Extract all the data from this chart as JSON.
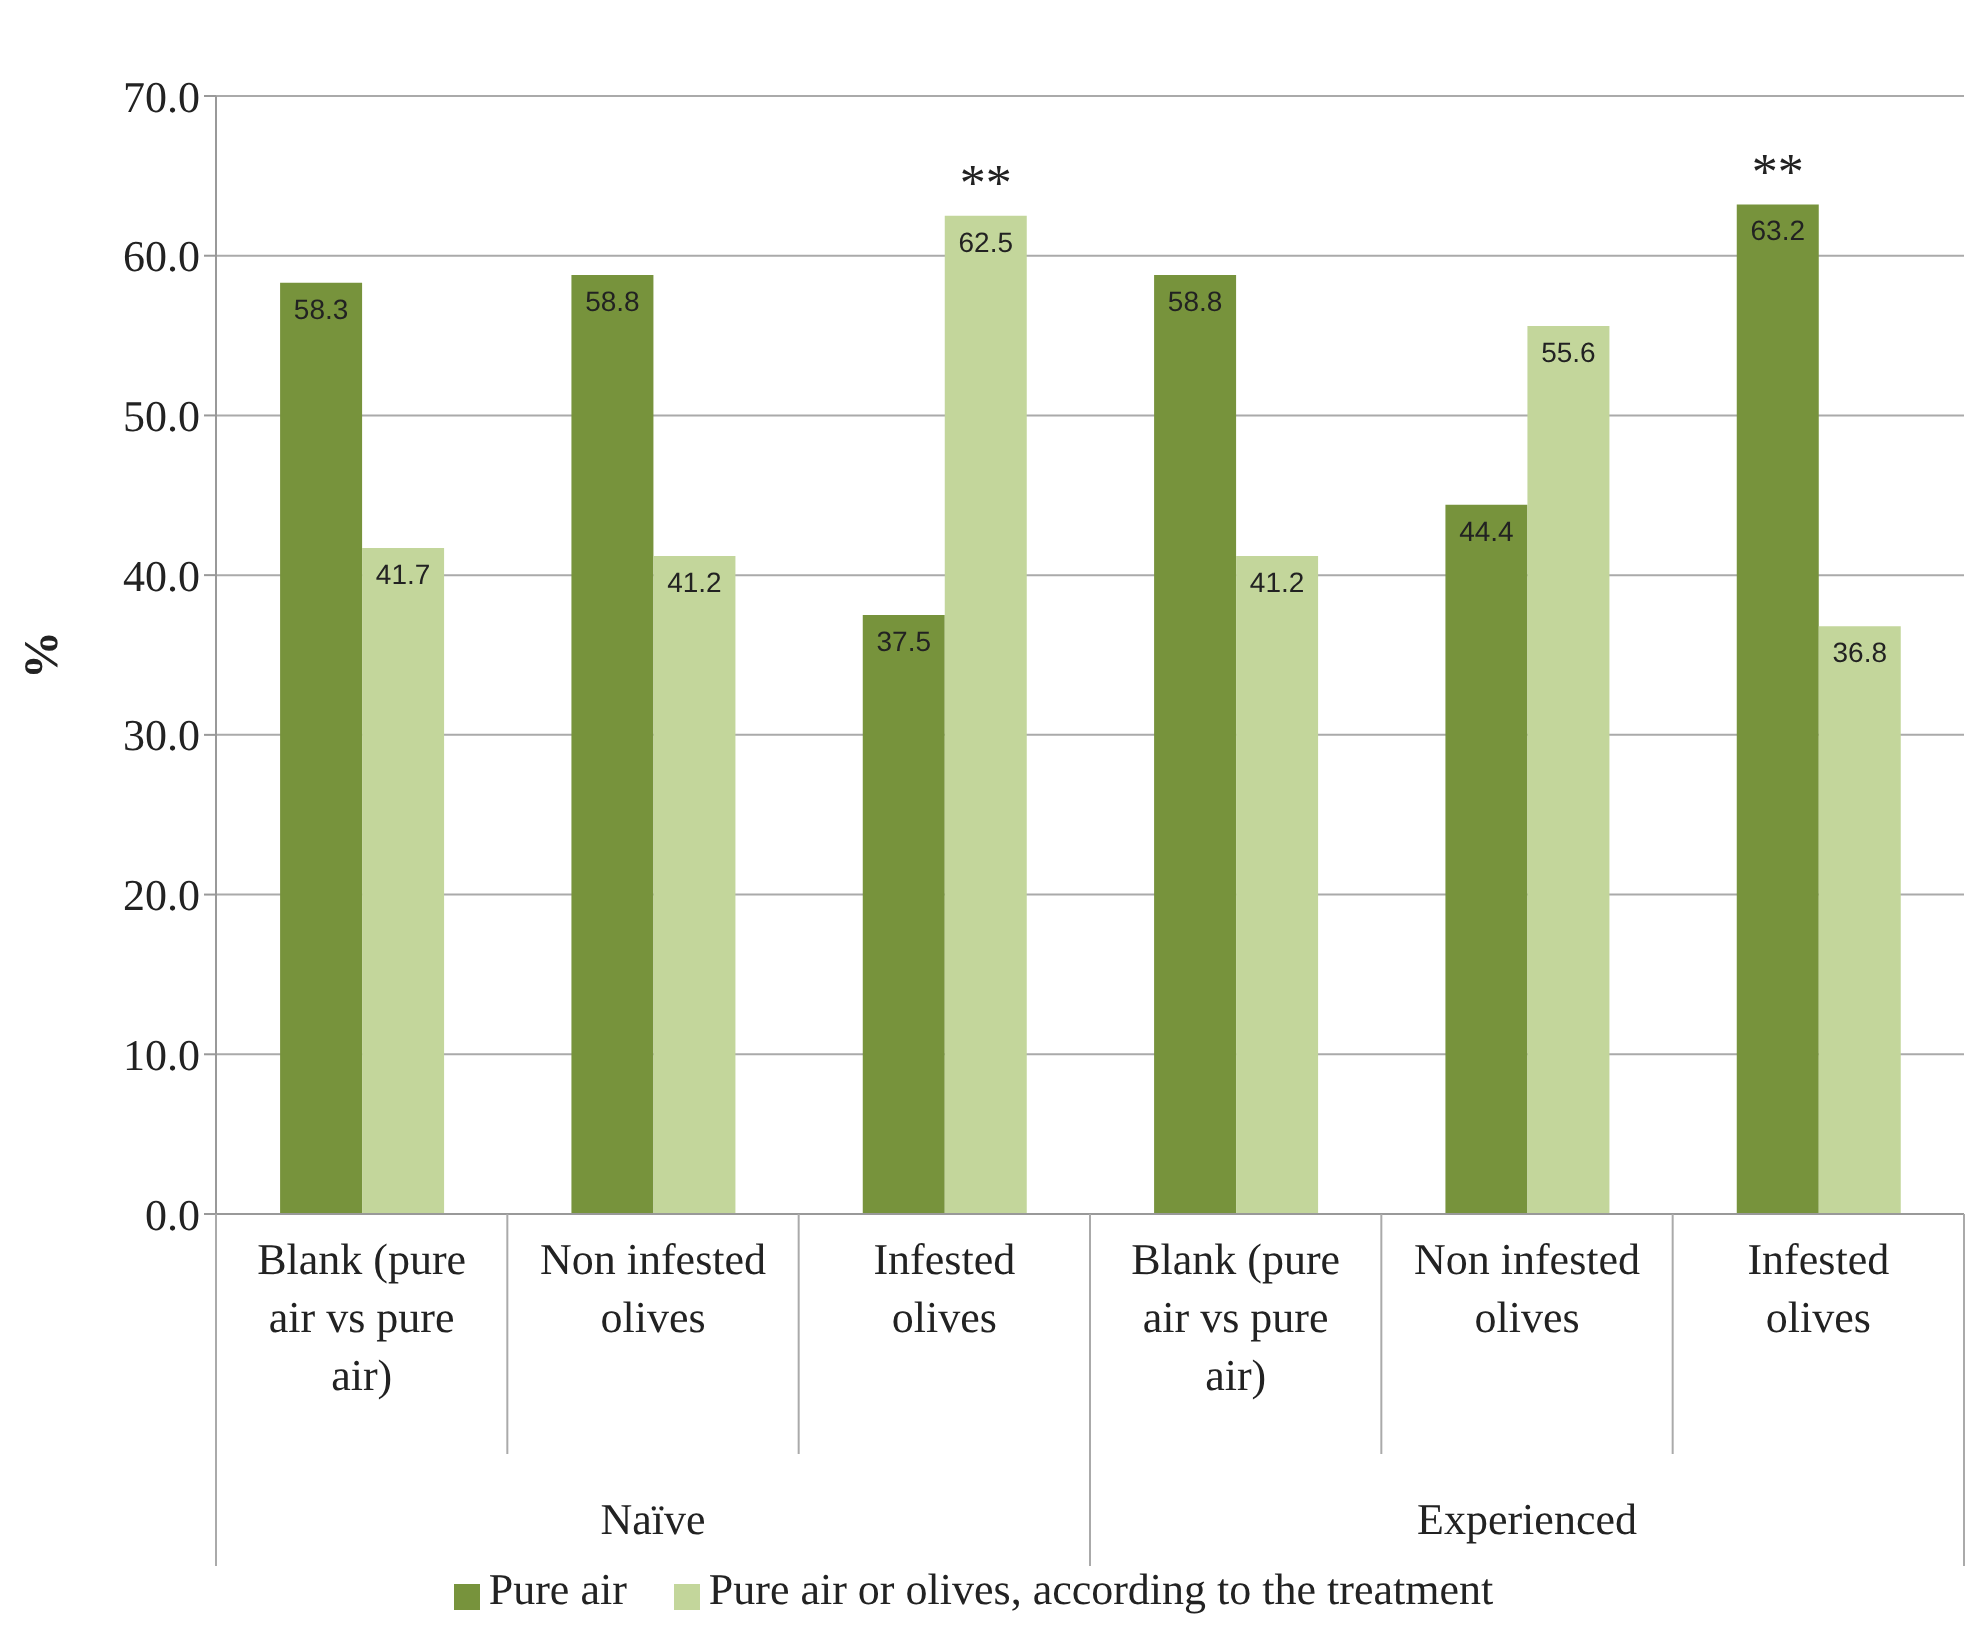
{
  "chart_data": {
    "type": "bar",
    "ylabel": "%",
    "categories": [
      "Blank (pure air vs pure air)",
      "Non infested olives",
      "Infested olives",
      "Blank (pure air vs pure air)",
      "Non infested olives",
      "Infested olives"
    ],
    "series": [
      {
        "name": "Pure air",
        "color": "#77933c",
        "values": [
          58.3,
          58.8,
          37.5,
          58.8,
          44.4,
          63.2
        ]
      },
      {
        "name": "Pure air or olives, according to the treatment",
        "color": "#c3d69b",
        "values": [
          41.7,
          41.2,
          62.5,
          41.2,
          55.6,
          36.8
        ]
      }
    ],
    "ylim": [
      0,
      70
    ],
    "yticks": [
      {
        "value": 0,
        "label": "0.0"
      },
      {
        "value": 10,
        "label": "10.0"
      },
      {
        "value": 20,
        "label": "20.0"
      },
      {
        "value": 30,
        "label": "30.0"
      },
      {
        "value": 40,
        "label": "40.0"
      },
      {
        "value": 50,
        "label": "50.0"
      },
      {
        "value": 60,
        "label": "60.0"
      },
      {
        "value": 70,
        "label": "70.0"
      }
    ],
    "grid": "y",
    "data_labels": true,
    "legend": "bottom",
    "annotations": [
      "**",
      "**",
      "Naïve",
      "Experienced"
    ]
  }
}
